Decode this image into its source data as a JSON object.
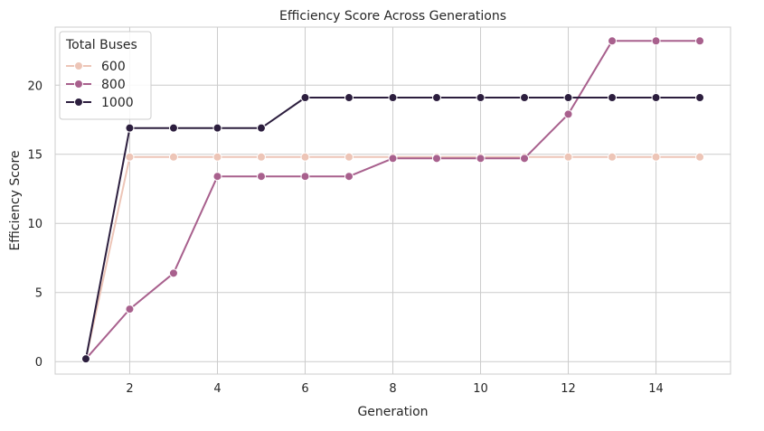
{
  "chart_data": {
    "type": "line",
    "title": "Efficiency Score Across Generations",
    "xlabel": "Generation",
    "ylabel": "Efficiency Score",
    "x": [
      1,
      2,
      3,
      4,
      5,
      6,
      7,
      8,
      9,
      10,
      11,
      12,
      13,
      14,
      15
    ],
    "xlim": [
      0.3,
      15.7
    ],
    "ylim": [
      -0.9,
      24.2
    ],
    "xticks": [
      2,
      4,
      6,
      8,
      10,
      12,
      14
    ],
    "yticks": [
      0,
      5,
      10,
      15,
      20
    ],
    "grid": true,
    "legend": {
      "title": "Total Buses",
      "placement": "top-left"
    },
    "series": [
      {
        "name": "600",
        "color": "#edc5b7",
        "values": [
          0.2,
          14.8,
          14.8,
          14.8,
          14.8,
          14.8,
          14.8,
          14.8,
          14.8,
          14.8,
          14.8,
          14.8,
          14.8,
          14.8,
          14.8
        ]
      },
      {
        "name": "800",
        "color": "#a8608d",
        "values": [
          0.2,
          3.8,
          6.4,
          13.4,
          13.4,
          13.4,
          13.4,
          14.7,
          14.7,
          14.7,
          14.7,
          17.9,
          23.2,
          23.2,
          23.2
        ]
      },
      {
        "name": "1000",
        "color": "#2c1e3e",
        "values": [
          0.2,
          16.9,
          16.9,
          16.9,
          16.9,
          19.1,
          19.1,
          19.1,
          19.1,
          19.1,
          19.1,
          19.1,
          19.1,
          19.1,
          19.1
        ]
      }
    ]
  }
}
